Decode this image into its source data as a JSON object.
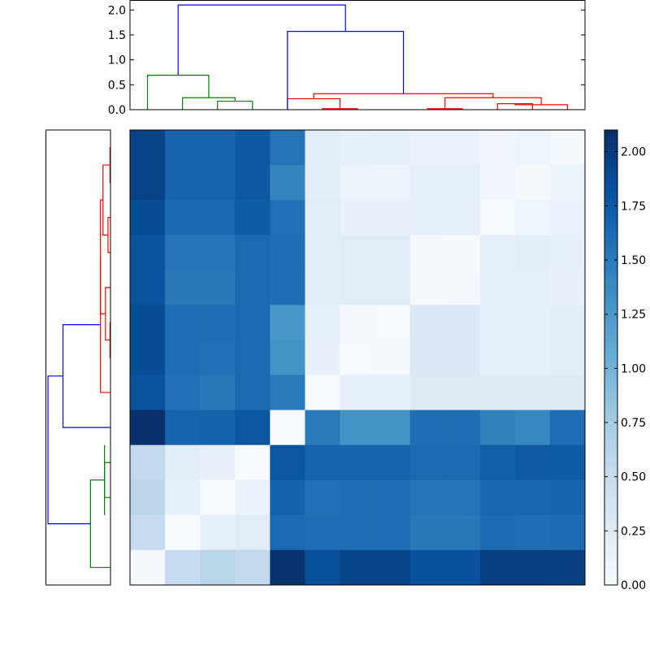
{
  "chart_data": [
    {
      "type": "dendrogram",
      "orientation": "top",
      "ylim": [
        0,
        2.2
      ],
      "yticks": [
        "0.0",
        "0.5",
        "1.0",
        "1.5",
        "2.0"
      ],
      "leaf_count": 13,
      "colors": {
        "green": "#008000",
        "red": "#ff0000",
        "blue": "#0000ff"
      },
      "links": [
        {
          "from": [
            8.5,
            0.0
          ],
          "to": [
            9.5,
            0.0
          ],
          "height": 0.02,
          "color": "red"
        },
        {
          "from": [
            10.5,
            0.0
          ],
          "to": [
            11.5,
            0.0
          ],
          "height": 0.12,
          "color": "red"
        },
        {
          "from": [
            11.0,
            0.12
          ],
          "to": [
            12.5,
            0.0
          ],
          "height": 0.1,
          "color": "red"
        },
        {
          "from": [
            9.0,
            0.02
          ],
          "to": [
            11.75,
            0.1
          ],
          "height": 0.24,
          "color": "red"
        },
        {
          "from": [
            5.5,
            0.0
          ],
          "to": [
            6.5,
            0.0
          ],
          "height": 0.02,
          "color": "red"
        },
        {
          "from": [
            4.5,
            0.0
          ],
          "to": [
            6.0,
            0.02
          ],
          "height": 0.22,
          "color": "red"
        },
        {
          "from": [
            5.25,
            0.22
          ],
          "to": [
            10.375,
            0.24
          ],
          "height": 0.32,
          "color": "red"
        },
        {
          "from": [
            2.5,
            0.0
          ],
          "to": [
            3.5,
            0.0
          ],
          "height": 0.17,
          "color": "green"
        },
        {
          "from": [
            1.5,
            0.0
          ],
          "to": [
            3.0,
            0.17
          ],
          "height": 0.24,
          "color": "green"
        },
        {
          "from": [
            0.5,
            0.0
          ],
          "to": [
            2.25,
            0.24
          ],
          "height": 0.69,
          "color": "green"
        },
        {
          "from": [
            4.5,
            0.0
          ],
          "to": [
            7.8125,
            0.32
          ],
          "height": 1.57,
          "color": "blue"
        },
        {
          "from": [
            1.375,
            0.69
          ],
          "to": [
            6.15625,
            1.57
          ],
          "height": 2.1,
          "color": "blue"
        }
      ]
    },
    {
      "type": "dendrogram",
      "orientation": "left",
      "leaf_count": 13,
      "colors": {
        "green": "#008000",
        "red": "#ff0000",
        "blue": "#0000ff"
      },
      "links": [
        {
          "from": [
            0.5,
            0.0
          ],
          "to": [
            1.5,
            0.0
          ],
          "height": 0.01,
          "color": "red"
        },
        {
          "from": [
            2.5,
            0.0
          ],
          "to": [
            3.5,
            0.0
          ],
          "height": 0.05,
          "color": "red"
        },
        {
          "from": [
            1.0,
            0.01
          ],
          "to": [
            3.0,
            0.05
          ],
          "height": 0.15,
          "color": "red"
        },
        {
          "from": [
            5.5,
            0.0
          ],
          "to": [
            6.5,
            0.0
          ],
          "height": 0.01,
          "color": "red"
        },
        {
          "from": [
            4.5,
            0.0
          ],
          "to": [
            6.0,
            0.01
          ],
          "height": 0.1,
          "color": "red"
        },
        {
          "from": [
            2.0,
            0.15
          ],
          "to": [
            5.25,
            0.1
          ],
          "height": 0.2,
          "color": "red"
        },
        {
          "from": [
            7.5,
            0.0
          ],
          "to": [
            3.625,
            0.2
          ],
          "height": 0.2,
          "color": "red"
        },
        {
          "from": [
            9.5,
            0.0
          ],
          "to": [
            10.5,
            0.0
          ],
          "height": 0.12,
          "color": "green"
        },
        {
          "from": [
            9.0,
            0.12
          ],
          "to": [
            11.0,
            0.12
          ],
          "height": 0.12,
          "color": "green"
        },
        {
          "from": [
            10.0,
            0.12
          ],
          "to": [
            12.5,
            0.0
          ],
          "height": 0.4,
          "color": "green"
        },
        {
          "from": [
            5.5625,
            0.2
          ],
          "to": [
            8.5,
            0.0
          ],
          "height": 0.95,
          "color": "blue"
        },
        {
          "from": [
            7.03,
            0.95
          ],
          "to": [
            11.25,
            0.4
          ],
          "height": 1.25,
          "color": "blue"
        }
      ]
    },
    {
      "type": "heatmap",
      "rows": 13,
      "cols": 13,
      "vmin": 0,
      "vmax": 2.1,
      "colormap": "Blues",
      "values": [
        [
          1.95,
          1.68,
          1.68,
          1.78,
          1.55,
          0.22,
          0.18,
          0.2,
          0.14,
          0.14,
          0.08,
          0.1,
          0.03
        ],
        [
          1.95,
          1.68,
          1.68,
          1.78,
          1.42,
          0.22,
          0.12,
          0.12,
          0.18,
          0.2,
          0.08,
          0.03,
          0.12
        ],
        [
          1.88,
          1.65,
          1.65,
          1.75,
          1.58,
          0.24,
          0.16,
          0.16,
          0.18,
          0.18,
          0.02,
          0.1,
          0.14
        ],
        [
          1.82,
          1.55,
          1.55,
          1.64,
          1.6,
          0.22,
          0.24,
          0.24,
          0.05,
          0.03,
          0.18,
          0.22,
          0.18
        ],
        [
          1.82,
          1.52,
          1.52,
          1.64,
          1.6,
          0.22,
          0.24,
          0.24,
          0.03,
          0.05,
          0.18,
          0.2,
          0.16
        ],
        [
          1.88,
          1.6,
          1.6,
          1.64,
          1.27,
          0.18,
          0.04,
          0.02,
          0.3,
          0.3,
          0.18,
          0.18,
          0.22
        ],
        [
          1.88,
          1.6,
          1.58,
          1.64,
          1.3,
          0.16,
          0.02,
          0.04,
          0.3,
          0.3,
          0.18,
          0.18,
          0.22
        ],
        [
          1.82,
          1.58,
          1.52,
          1.64,
          1.5,
          0.02,
          0.2,
          0.2,
          0.28,
          0.28,
          0.28,
          0.26,
          0.26
        ],
        [
          2.1,
          1.68,
          1.7,
          1.8,
          0.0,
          1.5,
          1.3,
          1.3,
          1.6,
          1.6,
          1.45,
          1.4,
          1.6
        ],
        [
          0.55,
          0.22,
          0.16,
          0.02,
          1.8,
          1.68,
          1.68,
          1.68,
          1.64,
          1.64,
          1.72,
          1.76,
          1.75
        ],
        [
          0.6,
          0.18,
          0.02,
          0.14,
          1.7,
          1.58,
          1.6,
          1.6,
          1.56,
          1.56,
          1.66,
          1.66,
          1.68
        ],
        [
          0.52,
          0.02,
          0.18,
          0.24,
          1.64,
          1.6,
          1.6,
          1.6,
          1.52,
          1.52,
          1.62,
          1.6,
          1.62
        ],
        [
          0.03,
          0.52,
          0.62,
          0.55,
          2.08,
          1.85,
          1.94,
          1.94,
          1.84,
          1.84,
          1.98,
          1.98,
          1.97
        ]
      ]
    },
    {
      "type": "colorbar",
      "vmin": 0,
      "vmax": 2.1,
      "ticks": [
        0.0,
        0.25,
        0.5,
        0.75,
        1.0,
        1.25,
        1.5,
        1.75,
        2.0
      ],
      "tick_labels": [
        "0.00",
        "0.25",
        "0.50",
        "0.75",
        "1.00",
        "1.25",
        "1.50",
        "1.75",
        "2.00"
      ]
    }
  ]
}
